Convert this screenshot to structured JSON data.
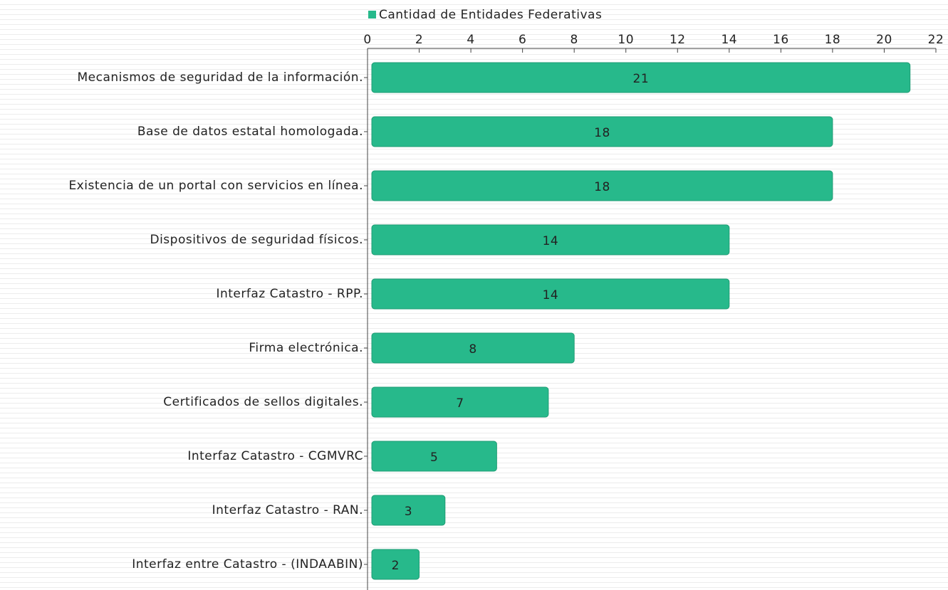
{
  "chart_data": {
    "type": "bar",
    "orientation": "horizontal",
    "categories": [
      "Mecanismos de seguridad de la información.",
      "Base de datos estatal homologada.",
      "Existencia de un portal con servicios en línea.",
      "Dispositivos de seguridad físicos.",
      "Interfaz Catastro - RPP.",
      "Firma electrónica.",
      "Certificados de sellos digitales.",
      "Interfaz Catastro - CGMVRC",
      "Interfaz Catastro - RAN.",
      "Interfaz entre Catastro - (INDAABIN)"
    ],
    "series": [
      {
        "name": "Cantidad de Entidades Federativas",
        "color": "#27b98b",
        "values": [
          21,
          18,
          18,
          14,
          14,
          8,
          7,
          5,
          3,
          2
        ]
      }
    ],
    "xlim": [
      0,
      22
    ],
    "xticks": [
      0,
      2,
      4,
      6,
      8,
      10,
      12,
      14,
      16,
      18,
      20,
      22
    ],
    "legend": "top",
    "data_labels": true
  }
}
